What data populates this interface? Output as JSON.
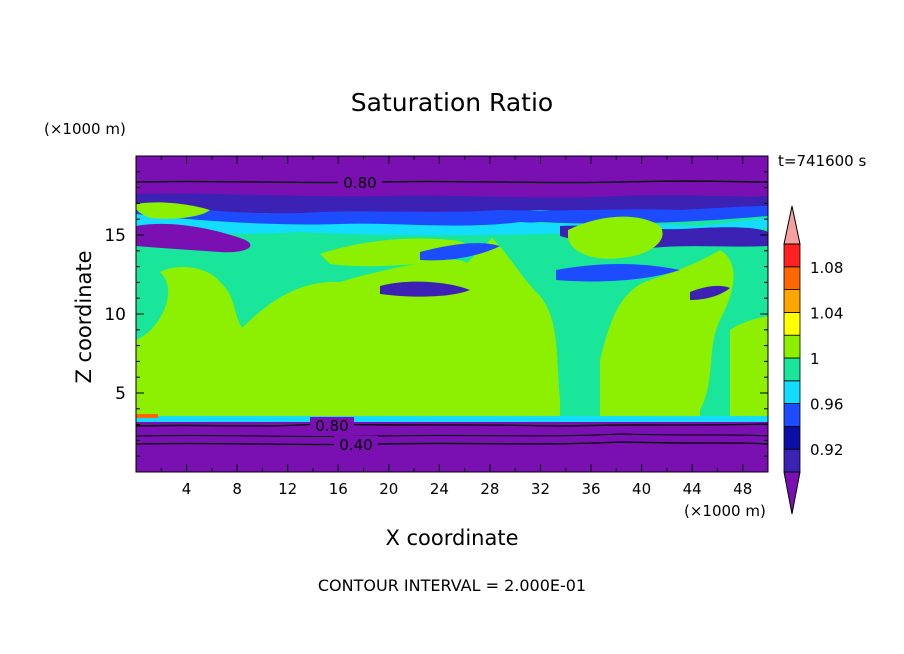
{
  "chart_data": {
    "type": "heatmap",
    "title": "Saturation Ratio",
    "xlabel": "X coordinate",
    "ylabel": "Z coordinate",
    "x_unit": "(×1000 m)",
    "y_unit": "(×1000 m)",
    "time_label": "t=741600 s",
    "contour_interval": "CONTOUR INTERVAL = 2.000E-01",
    "xlim": [
      0,
      50
    ],
    "ylim": [
      0,
      20
    ],
    "x_ticks": [
      "4",
      "8",
      "12",
      "16",
      "20",
      "24",
      "28",
      "32",
      "36",
      "40",
      "44",
      "48"
    ],
    "y_ticks": [
      "5",
      "10",
      "15"
    ],
    "colorbar": {
      "levels": [
        0.9,
        0.92,
        0.94,
        0.96,
        0.98,
        1.0,
        1.02,
        1.04,
        1.06,
        1.08,
        1.1
      ],
      "labels": [
        "0.92",
        "0.96",
        "1",
        "1.04",
        "1.08"
      ],
      "colors": [
        "#7a0fb2",
        "#3b22b4",
        "#0b0fa8",
        "#1d4cff",
        "#14dcff",
        "#19e69a",
        "#8cf000",
        "#ffff00",
        "#ffa500",
        "#ff6600",
        "#ff2020",
        "#f5a0a0"
      ]
    },
    "contour_labels": [
      "0.80",
      "0.80",
      "0.40"
    ]
  }
}
